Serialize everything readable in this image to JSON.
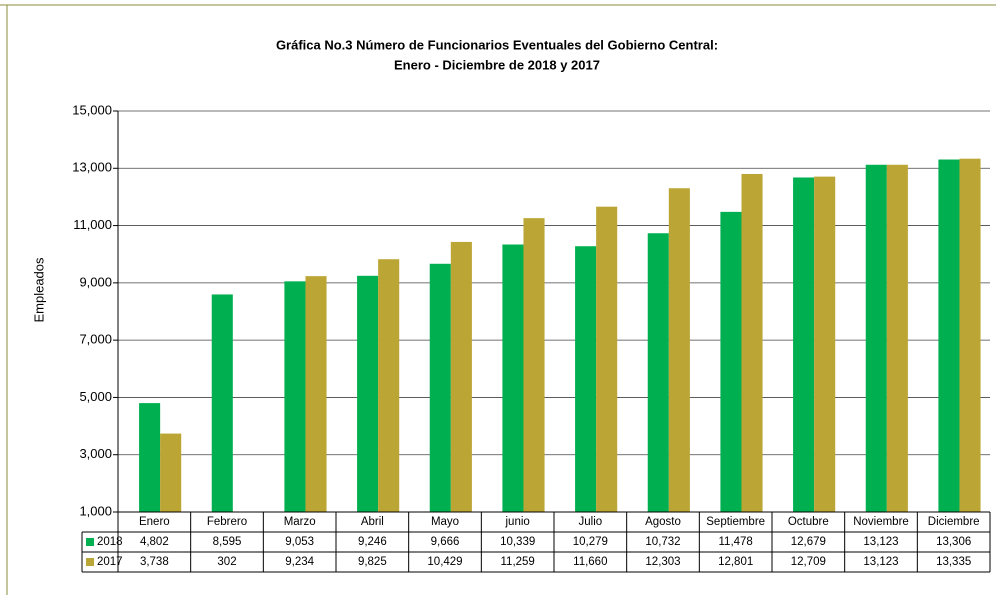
{
  "chart_data": {
    "type": "bar",
    "title": "Gráfica No.3 Número de Funcionarios Eventuales del Gobierno Central:",
    "subtitle": "Enero - Diciembre  de 2018 y 2017",
    "y_label": "Empleados",
    "categories": [
      "Enero",
      "Febrero",
      "Marzo",
      "Abril",
      "Mayo",
      "junio",
      "Julio",
      "Agosto",
      "Septiembre",
      "Octubre",
      "Noviembre",
      "Diciembre"
    ],
    "series": [
      {
        "name": "2018",
        "color": "#00b050",
        "values": [
          4802,
          8595,
          9053,
          9246,
          9666,
          10339,
          10279,
          10732,
          11478,
          12679,
          13123,
          13306
        ],
        "value_labels": [
          "4,802",
          "8,595",
          "9,053",
          "9,246",
          "9,666",
          "10,339",
          "10,279",
          "10,732",
          "11,478",
          "12,679",
          "13,123",
          "13,306"
        ]
      },
      {
        "name": "2017",
        "color": "#bba535",
        "values": [
          3738,
          302,
          9234,
          9825,
          10429,
          11259,
          11660,
          12303,
          12801,
          12709,
          13123,
          13335
        ],
        "value_labels": [
          "3,738",
          "302",
          "9,234",
          "9,825",
          "10,429",
          "11,259",
          "11,660",
          "12,303",
          "12,801",
          "12,709",
          "13,123",
          "13,335"
        ]
      }
    ],
    "ylim": [
      1000,
      15000
    ],
    "yticks": [
      {
        "value": 1000,
        "label": "1,000"
      },
      {
        "value": 3000,
        "label": "3,000"
      },
      {
        "value": 5000,
        "label": "5,000"
      },
      {
        "value": 7000,
        "label": "7,000"
      },
      {
        "value": 9000,
        "label": "9,000"
      },
      {
        "value": 11000,
        "label": "11,000"
      },
      {
        "value": 13000,
        "label": "13,000"
      },
      {
        "value": 15000,
        "label": "15,000"
      }
    ],
    "grid": true
  }
}
